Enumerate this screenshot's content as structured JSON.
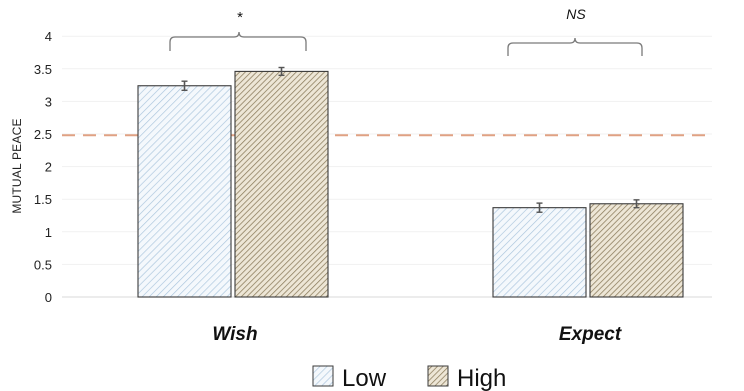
{
  "chart_data": {
    "type": "bar",
    "ylabel": "MUTUAL PEACE",
    "ylim": [
      0,
      4.3
    ],
    "yticks": [
      "0",
      "0.5",
      "1",
      "1.5",
      "2",
      "2.5",
      "3",
      "3.5",
      "4"
    ],
    "grid": true,
    "categories": [
      "Wish",
      "Expect"
    ],
    "series": [
      {
        "name": "Low",
        "values": [
          3.24,
          1.37
        ],
        "errors": [
          0.07,
          0.07
        ],
        "pattern": "light-diagonal",
        "color": "#a9c4dc"
      },
      {
        "name": "High",
        "values": [
          3.46,
          1.43
        ],
        "errors": [
          0.06,
          0.06
        ],
        "pattern": "dense-diagonal",
        "color": "#8a7a5a"
      }
    ],
    "reference_line": {
      "y": 2.48,
      "color": "#e0a183",
      "style": "dashed"
    },
    "significance": [
      {
        "category": "Wish",
        "label": "*"
      },
      {
        "category": "Expect",
        "label": "NS"
      }
    ],
    "legend": {
      "placement": "bottom",
      "entries": [
        "Low",
        "High"
      ]
    }
  }
}
